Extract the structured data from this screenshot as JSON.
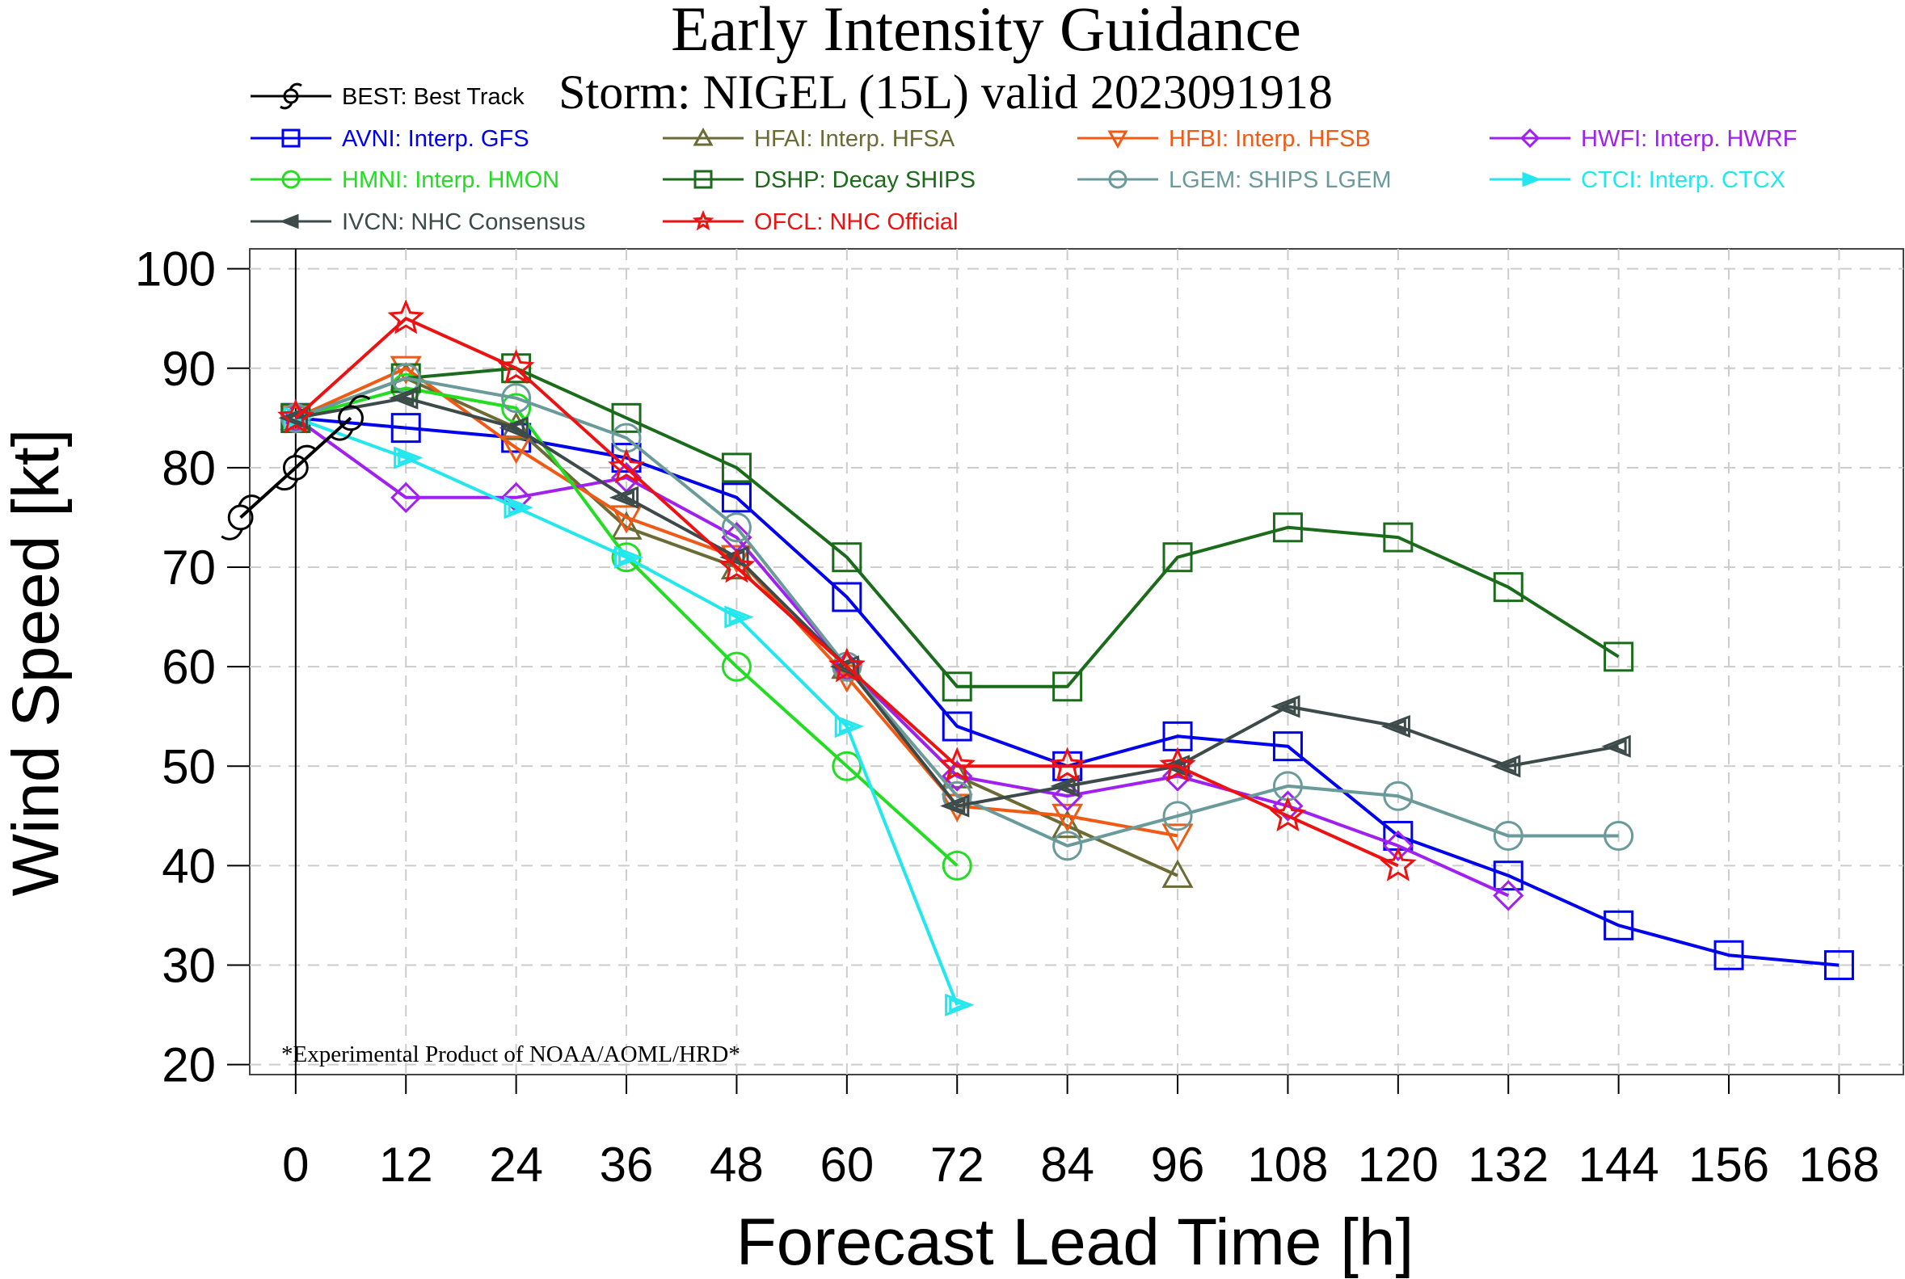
{
  "chart_data": {
    "type": "line",
    "title": "Early Intensity Guidance",
    "subtitle": "Storm: NIGEL (15L) valid 2023091918",
    "xlabel": "Forecast Lead Time [h]",
    "ylabel": "Wind Speed [kt]",
    "xlim": [
      -5,
      175
    ],
    "ylim": [
      19,
      102
    ],
    "xticks": [
      0,
      12,
      24,
      36,
      48,
      60,
      72,
      84,
      96,
      108,
      120,
      132,
      144,
      156,
      168
    ],
    "yticks": [
      20,
      30,
      40,
      50,
      60,
      70,
      80,
      90,
      100
    ],
    "grid": true,
    "legend_position": "top",
    "annotation": "*Experimental Product of NOAA/AOML/HRD*",
    "series": [
      {
        "id": "AVNI",
        "name": "AVNI: Interp. GFS",
        "color": "#0000ee",
        "marker": "square",
        "x": [
          0,
          12,
          24,
          36,
          48,
          60,
          72,
          84,
          96,
          108,
          120,
          132,
          144,
          156,
          168
        ],
        "y": [
          85,
          84,
          83,
          81,
          77,
          67,
          54,
          50,
          53,
          52,
          43,
          39,
          34,
          31,
          30
        ]
      },
      {
        "id": "HFAI",
        "name": "HFAI: Interp. HFSA",
        "color": "#6b6b35",
        "marker": "triangle",
        "x": [
          0,
          12,
          24,
          36,
          48,
          60,
          72,
          84,
          96
        ],
        "y": [
          85,
          89,
          84,
          74,
          70,
          60,
          49,
          44,
          39
        ]
      },
      {
        "id": "HFBI",
        "name": "HFBI: Interp. HFSB",
        "color": "#f05a14",
        "marker": "triangle-down",
        "x": [
          0,
          12,
          24,
          36,
          48,
          60,
          72,
          84,
          96
        ],
        "y": [
          85,
          90,
          82,
          75,
          71,
          59,
          46,
          45,
          43
        ]
      },
      {
        "id": "HWFI",
        "name": "HWFI: Interp. HWRF",
        "color": "#a020f0",
        "marker": "diamond",
        "x": [
          0,
          12,
          24,
          36,
          48,
          60,
          72,
          84,
          96,
          108,
          120,
          132
        ],
        "y": [
          85,
          77,
          77,
          79,
          73,
          60,
          49,
          47,
          49,
          46,
          42,
          37
        ]
      },
      {
        "id": "HMNI",
        "name": "HMNI: Interp. HMON",
        "color": "#22dd22",
        "marker": "circle",
        "x": [
          0,
          12,
          24,
          36,
          48,
          60,
          72
        ],
        "y": [
          85,
          88,
          86,
          71,
          60,
          50,
          40
        ]
      },
      {
        "id": "DSHP",
        "name": "DSHP: Decay SHIPS",
        "color": "#1a6b1a",
        "marker": "square",
        "x": [
          0,
          12,
          24,
          36,
          48,
          60,
          72,
          84,
          96,
          108,
          120,
          132,
          144
        ],
        "y": [
          85,
          89,
          90,
          85,
          80,
          71,
          58,
          58,
          71,
          74,
          73,
          68,
          61
        ]
      },
      {
        "id": "LGEM",
        "name": "LGEM: SHIPS LGEM",
        "color": "#6a9a9a",
        "marker": "circle",
        "x": [
          0,
          12,
          24,
          36,
          48,
          60,
          72,
          84,
          96,
          108,
          120,
          132,
          144
        ],
        "y": [
          85,
          89,
          87,
          83,
          74,
          60,
          47,
          42,
          45,
          48,
          47,
          43,
          43
        ]
      },
      {
        "id": "CTCI",
        "name": "CTCI: Interp. CTCX",
        "color": "#22e8ee",
        "marker": "triangle-right",
        "x": [
          0,
          12,
          24,
          36,
          48,
          60,
          72
        ],
        "y": [
          85,
          81,
          76,
          71,
          65,
          54,
          26
        ]
      },
      {
        "id": "IVCN",
        "name": "IVCN: NHC Consensus",
        "color": "#3c4a4a",
        "marker": "triangle-left",
        "x": [
          0,
          12,
          24,
          36,
          48,
          60,
          72,
          84,
          96,
          108,
          120,
          132,
          144
        ],
        "y": [
          85,
          87,
          84,
          77,
          71,
          60,
          46,
          48,
          50,
          56,
          54,
          50,
          52
        ]
      },
      {
        "id": "OFCL",
        "name": "OFCL: NHC Official",
        "color": "#ee1111",
        "marker": "star",
        "x": [
          0,
          12,
          24,
          36,
          48,
          60,
          72,
          84,
          96,
          108,
          120
        ],
        "y": [
          85,
          95,
          90,
          80,
          70,
          60,
          50,
          50,
          50,
          45,
          40
        ]
      },
      {
        "id": "BEST",
        "name": "BEST: Best Track",
        "color": "#000000",
        "marker": "hurricane",
        "x": [
          -6,
          0,
          6
        ],
        "y": [
          75,
          80,
          85
        ]
      }
    ],
    "legend_order": [
      "BEST",
      "AVNI",
      "HFAI",
      "HFBI",
      "HWFI",
      "HMNI",
      "DSHP",
      "LGEM",
      "CTCI",
      "IVCN",
      "OFCL"
    ]
  }
}
